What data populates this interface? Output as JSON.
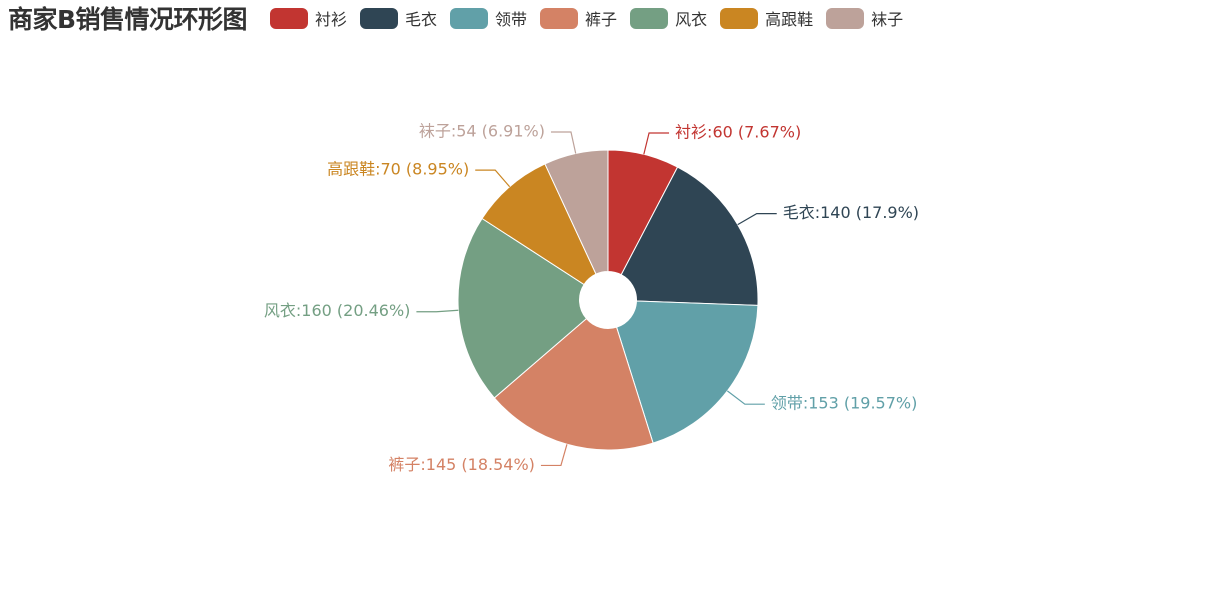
{
  "chart_data": {
    "type": "pie",
    "title": "商家B销售情况环形图",
    "legend_position": "top",
    "inner_radius_ratio": 0.19,
    "slices": [
      {
        "name": "衬衫",
        "value": 60,
        "percent": "7.67%",
        "color": "#c23531"
      },
      {
        "name": "毛衣",
        "value": 140,
        "percent": "17.9%",
        "color": "#2f4554"
      },
      {
        "name": "领带",
        "value": 153,
        "percent": "19.57%",
        "color": "#61a0a8"
      },
      {
        "name": "裤子",
        "value": 145,
        "percent": "18.54%",
        "color": "#d48265"
      },
      {
        "name": "风衣",
        "value": 160,
        "percent": "20.46%",
        "color": "#749f83"
      },
      {
        "name": "高跟鞋",
        "value": 70,
        "percent": "8.95%",
        "color": "#ca8622"
      },
      {
        "name": "袜子",
        "value": 54,
        "percent": "6.91%",
        "color": "#bda29a"
      }
    ]
  }
}
